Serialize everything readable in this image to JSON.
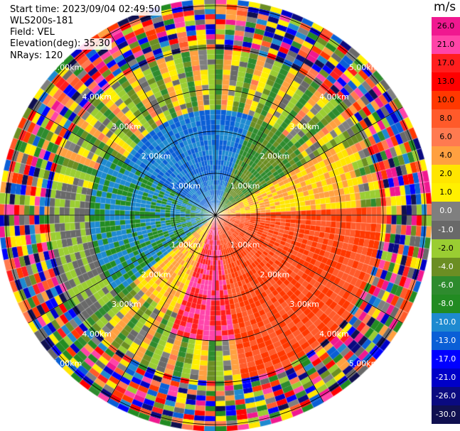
{
  "header": {
    "start_time": "Start time: 2023/09/04 02:49:50",
    "instrument": "WLS200s-181",
    "field": "Field: VEL",
    "elevation": "Elevation(deg): 35.30",
    "nrays": "NRays: 120"
  },
  "colorbar": {
    "unit": "m/s",
    "ticks": [
      "26.0",
      "21.0",
      "17.0",
      "13.0",
      "10.0",
      "8.0",
      "6.0",
      "4.0",
      "2.0",
      "1.0",
      "0.0",
      "-1.0",
      "-2.0",
      "-4.0",
      "-6.0",
      "-8.0",
      "-10.0",
      "-13.0",
      "-17.0",
      "-21.0",
      "-26.0",
      "-30.0"
    ],
    "colors": [
      "#f01890",
      "#ff44a8",
      "#ff1e1e",
      "#ff0000",
      "#ff3800",
      "#ff5a2a",
      "#ff7a50",
      "#ffa040",
      "#ffe500",
      "#fff000",
      "#7f7f7f",
      "#696969",
      "#9acd32",
      "#6b8e23",
      "#2e8b2e",
      "#228b22",
      "#1e8ad0",
      "#0a5fd6",
      "#0000ff",
      "#0000c8",
      "#0a0a80",
      "#101050"
    ]
  },
  "chart_data": {
    "type": "heatmap",
    "projection": "polar PPI scan",
    "field": "VEL",
    "units": "m/s",
    "nrays": 120,
    "range_rings_km": [
      1.0,
      2.0,
      3.0,
      4.0,
      5.0
    ],
    "ring_labels": [
      "1.00km",
      "2.00km",
      "3.00km",
      "4.00km",
      "5.00km"
    ],
    "grid_spokes_deg": [
      0,
      30,
      60,
      90,
      120,
      150,
      180,
      210,
      240,
      270,
      300,
      330
    ],
    "colorbar_range": [
      -30.0,
      26.0
    ],
    "sectors": [
      {
        "azimuth_from_deg": 300,
        "azimuth_to_deg": 20,
        "range_km": [
          0,
          2.5
        ],
        "velocity_ms": -13.0
      },
      {
        "azimuth_from_deg": 230,
        "azimuth_to_deg": 300,
        "range_km": [
          0,
          3.0
        ],
        "velocity_ms": -10.0
      },
      {
        "azimuth_from_deg": 20,
        "azimuth_to_deg": 60,
        "range_km": [
          0,
          2.5
        ],
        "velocity_ms": -6.0
      },
      {
        "azimuth_from_deg": 60,
        "azimuth_to_deg": 85,
        "range_km": [
          0,
          3.5
        ],
        "velocity_ms": 2.0
      },
      {
        "azimuth_from_deg": 85,
        "azimuth_to_deg": 170,
        "range_km": [
          0,
          4.0
        ],
        "velocity_ms": 8.0
      },
      {
        "azimuth_from_deg": 170,
        "azimuth_to_deg": 200,
        "range_km": [
          0,
          3.0
        ],
        "velocity_ms": 17.0
      },
      {
        "azimuth_from_deg": 200,
        "azimuth_to_deg": 230,
        "range_km": [
          0,
          2.5
        ],
        "velocity_ms": 2.0
      },
      {
        "azimuth_from_deg": 230,
        "azimuth_to_deg": 280,
        "range_km": [
          2.5,
          4.0
        ],
        "velocity_ms": -2.0
      }
    ],
    "outer_noise_range_km": [
      4.0,
      5.2
    ]
  }
}
